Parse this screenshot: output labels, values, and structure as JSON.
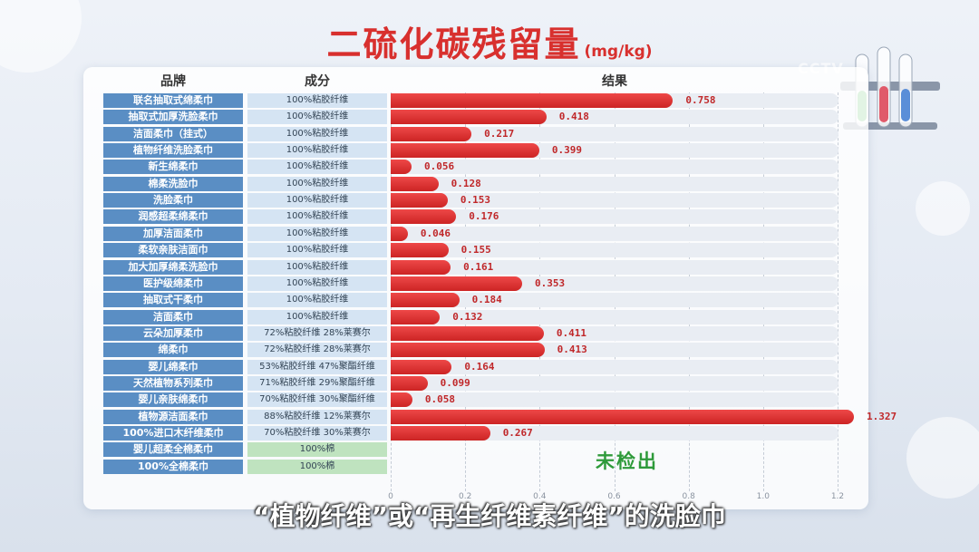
{
  "title": "二硫化碳残留量",
  "unit": "(mg/kg)",
  "logo": "CCTV",
  "headers": {
    "brand": "品牌",
    "ingredient": "成分",
    "result": "结果"
  },
  "subtitle": "“植物纤维”或“再生纤维素纤维”的洗脸巾",
  "not_detected_label": "未检出",
  "colors": {
    "bar": "#d8302e",
    "brand_cell": "#5a8ec4",
    "ingredient_cell": "#d5e4f3",
    "cotton_cell": "#bfe3bf",
    "not_detected": "#2e9a3a"
  },
  "chart_data": {
    "type": "bar",
    "orientation": "horizontal",
    "title": "二硫化碳残留量",
    "unit": "mg/kg",
    "xlim": [
      0,
      1.2
    ],
    "xticks": [
      0,
      0.2,
      0.4,
      0.6,
      0.8,
      1.0,
      1.2
    ],
    "xtick_labels": [
      "0",
      "0.2",
      "0.4",
      "0.6",
      "0.8",
      "1.0",
      "1.2"
    ],
    "rows": [
      {
        "brand": "联名抽取式绵柔巾",
        "ingredient": "100%粘胶纤维",
        "value": 0.758,
        "label": "0.758"
      },
      {
        "brand": "抽取式加厚洗脸柔巾",
        "ingredient": "100%粘胶纤维",
        "value": 0.418,
        "label": "0.418"
      },
      {
        "brand": "洁面柔巾（挂式）",
        "ingredient": "100%粘胶纤维",
        "value": 0.217,
        "label": "0.217"
      },
      {
        "brand": "植物纤维洗脸柔巾",
        "ingredient": "100%粘胶纤维",
        "value": 0.399,
        "label": "0.399"
      },
      {
        "brand": "新生绵柔巾",
        "ingredient": "100%粘胶纤维",
        "value": 0.056,
        "label": "0.056"
      },
      {
        "brand": "棉柔洗脸巾",
        "ingredient": "100%粘胶纤维",
        "value": 0.128,
        "label": "0.128"
      },
      {
        "brand": "洗脸柔巾",
        "ingredient": "100%粘胶纤维",
        "value": 0.153,
        "label": "0.153"
      },
      {
        "brand": "润感超柔绵柔巾",
        "ingredient": "100%粘胶纤维",
        "value": 0.176,
        "label": "0.176"
      },
      {
        "brand": "加厚洁面柔巾",
        "ingredient": "100%粘胶纤维",
        "value": 0.046,
        "label": "0.046"
      },
      {
        "brand": "柔软亲肤洁面巾",
        "ingredient": "100%粘胶纤维",
        "value": 0.155,
        "label": "0.155"
      },
      {
        "brand": "加大加厚绵柔洗脸巾",
        "ingredient": "100%粘胶纤维",
        "value": 0.161,
        "label": "0.161"
      },
      {
        "brand": "医护级绵柔巾",
        "ingredient": "100%粘胶纤维",
        "value": 0.353,
        "label": "0.353"
      },
      {
        "brand": "抽取式干柔巾",
        "ingredient": "100%粘胶纤维",
        "value": 0.184,
        "label": "0.184"
      },
      {
        "brand": "洁面柔巾",
        "ingredient": "100%粘胶纤维",
        "value": 0.132,
        "label": "0.132"
      },
      {
        "brand": "云朵加厚柔巾",
        "ingredient": "72%粘胶纤维 28%莱赛尔",
        "value": 0.411,
        "label": "0.411"
      },
      {
        "brand": "绵柔巾",
        "ingredient": "72%粘胶纤维 28%莱赛尔",
        "value": 0.413,
        "label": "0.413"
      },
      {
        "brand": "婴儿绵柔巾",
        "ingredient": "53%粘胶纤维 47%聚酯纤维",
        "value": 0.164,
        "label": "0.164"
      },
      {
        "brand": "天然植物系列柔巾",
        "ingredient": "71%粘胶纤维 29%聚酯纤维",
        "value": 0.099,
        "label": "0.099"
      },
      {
        "brand": "婴儿亲肤绵柔巾",
        "ingredient": "70%粘胶纤维 30%聚酯纤维",
        "value": 0.058,
        "label": "0.058"
      },
      {
        "brand": "植物源洁面柔巾",
        "ingredient": "88%粘胶纤维 12%莱赛尔",
        "value": 1.327,
        "label": "1.327"
      },
      {
        "brand": "100%进口木纤维柔巾",
        "ingredient": "70%粘胶纤维 30%莱赛尔",
        "value": 0.267,
        "label": "0.267"
      },
      {
        "brand": "婴儿超柔全棉柔巾",
        "ingredient": "100%棉",
        "value": null,
        "label": ""
      },
      {
        "brand": "100%全棉柔巾",
        "ingredient": "100%棉",
        "value": null,
        "label": ""
      }
    ]
  }
}
